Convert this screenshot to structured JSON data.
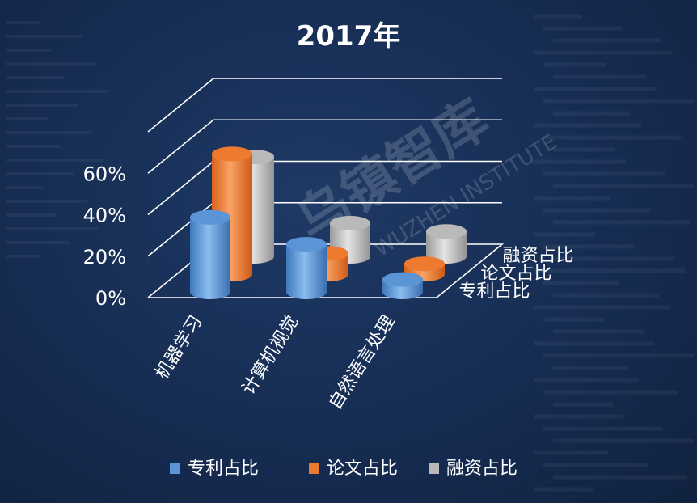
{
  "colors": {
    "background": "#172e55",
    "axis_text": "#ffffff",
    "grid": "#ffffff",
    "patent": "#5b95d5",
    "paper": "#ee7a30",
    "funding": "#b9b9b9"
  },
  "watermark": {
    "cn": "乌镇智库",
    "en": "WUZHEN INSTITUTE"
  },
  "chart_data": {
    "type": "bar",
    "style": "3d-cylinder",
    "title": "2017年",
    "categories": [
      "机器学习",
      "计算机视觉",
      "自然语言处理"
    ],
    "series": [
      {
        "name": "专利占比",
        "color": "#5b95d5",
        "values": [
          0.36,
          0.23,
          0.06
        ]
      },
      {
        "name": "论文占比",
        "color": "#ee7a30",
        "values": [
          0.58,
          0.1,
          0.05
        ]
      },
      {
        "name": "融资占比",
        "color": "#b9b9b9",
        "values": [
          0.48,
          0.16,
          0.12
        ]
      }
    ],
    "y_ticks": [
      "0%",
      "20%",
      "40%",
      "60%"
    ],
    "ylim": [
      0,
      0.8
    ],
    "grid": true,
    "legend": "bottom"
  }
}
